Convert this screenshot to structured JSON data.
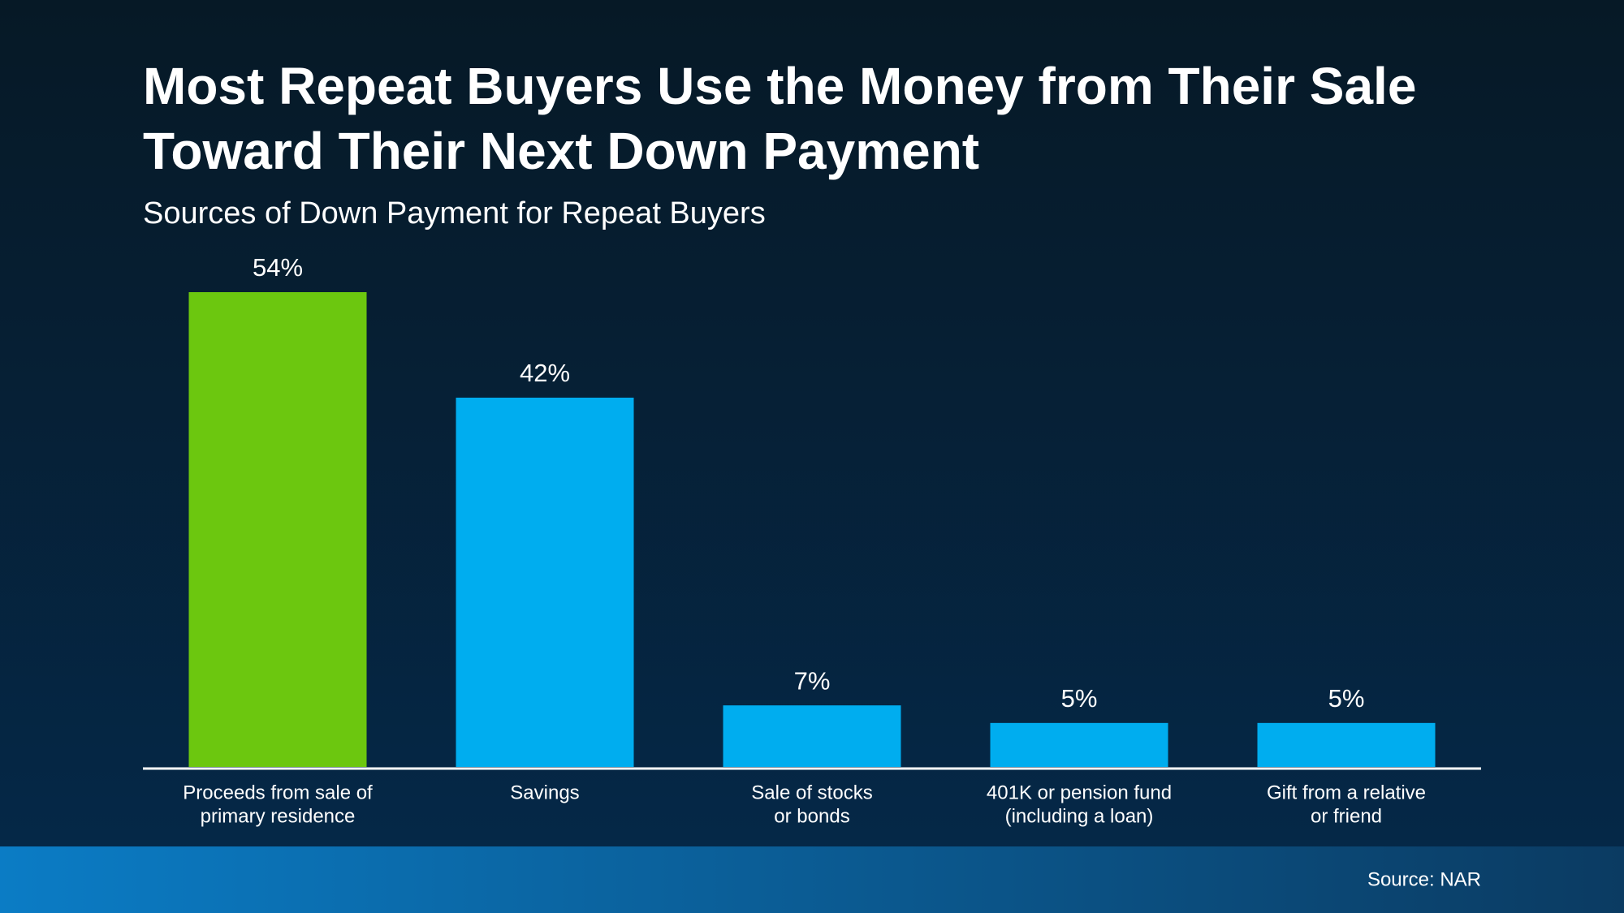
{
  "chart_data": {
    "type": "bar",
    "title": [
      "Most Repeat Buyers Use the Money from Their Sale",
      "Toward Their Next Down Payment"
    ],
    "subtitle": "Sources of Down Payment for Repeat Buyers",
    "categories": [
      [
        "Proceeds from sale of",
        "primary residence"
      ],
      [
        "Savings"
      ],
      [
        "Sale of stocks",
        "or bonds"
      ],
      [
        "401K or pension fund",
        "(including a loan)"
      ],
      [
        "Gift from a relative",
        "or friend"
      ]
    ],
    "values": [
      54,
      42,
      7,
      5,
      5
    ],
    "value_labels": [
      "54%",
      "42%",
      "7%",
      "5%",
      "5%"
    ],
    "colors": [
      "#6cc70f",
      "#00adef",
      "#00adef",
      "#00adef",
      "#00adef"
    ],
    "source": "Source: NAR"
  }
}
